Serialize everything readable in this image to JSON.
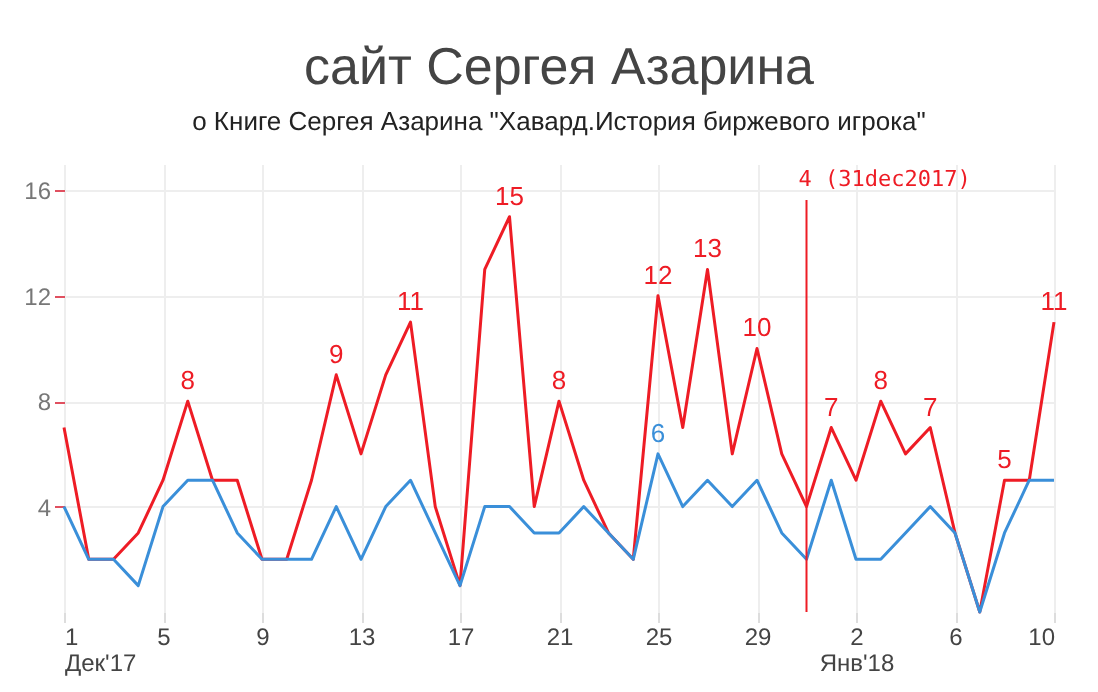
{
  "chart_data": {
    "type": "line",
    "title": "сайт Сергея Азарина",
    "subtitle": "о Книге Сергея Азарина \"Хавард.История биржевого игрока\"",
    "x": [
      "2017-12-01",
      "2017-12-02",
      "2017-12-03",
      "2017-12-04",
      "2017-12-05",
      "2017-12-06",
      "2017-12-07",
      "2017-12-08",
      "2017-12-09",
      "2017-12-10",
      "2017-12-11",
      "2017-12-12",
      "2017-12-13",
      "2017-12-14",
      "2017-12-15",
      "2017-12-16",
      "2017-12-17",
      "2017-12-18",
      "2017-12-19",
      "2017-12-20",
      "2017-12-21",
      "2017-12-22",
      "2017-12-23",
      "2017-12-24",
      "2017-12-25",
      "2017-12-26",
      "2017-12-27",
      "2017-12-28",
      "2017-12-29",
      "2017-12-30",
      "2017-12-31",
      "2018-01-01",
      "2018-01-02",
      "2018-01-03",
      "2018-01-04",
      "2018-01-05",
      "2018-01-06",
      "2018-01-07",
      "2018-01-08",
      "2018-01-09",
      "2018-01-10"
    ],
    "series": [
      {
        "color": "#ee1c25",
        "values": [
          7,
          2,
          2,
          3,
          5,
          8,
          5,
          5,
          2,
          2,
          5,
          9,
          6,
          9,
          11,
          4,
          1,
          13,
          15,
          4,
          8,
          5,
          3,
          2,
          12,
          7,
          13,
          6,
          10,
          6,
          4,
          7,
          5,
          8,
          6,
          7,
          3,
          0,
          5,
          5,
          11
        ],
        "value_labels": [
          null,
          null,
          null,
          null,
          null,
          "8",
          null,
          null,
          null,
          null,
          null,
          "9",
          null,
          null,
          "11",
          null,
          null,
          null,
          "15",
          null,
          "8",
          null,
          null,
          null,
          "12",
          null,
          "13",
          null,
          "10",
          null,
          null,
          "7",
          null,
          "8",
          null,
          "7",
          null,
          null,
          "5",
          null,
          "11"
        ]
      },
      {
        "color": "#3a8fd9",
        "values": [
          4,
          2,
          2,
          1,
          4,
          5,
          5,
          3,
          2,
          2,
          2,
          4,
          2,
          4,
          5,
          3,
          1,
          4,
          4,
          3,
          3,
          4,
          3,
          2,
          6,
          4,
          5,
          4,
          5,
          3,
          2,
          5,
          2,
          2,
          3,
          4,
          3,
          0,
          3,
          5,
          5
        ],
        "value_labels": [
          null,
          null,
          null,
          null,
          null,
          null,
          null,
          null,
          null,
          null,
          null,
          null,
          null,
          null,
          null,
          null,
          null,
          null,
          null,
          null,
          null,
          null,
          null,
          null,
          "6",
          null,
          null,
          null,
          null,
          null,
          null,
          null,
          null,
          null,
          null,
          null,
          null,
          null,
          null,
          null,
          null
        ]
      }
    ],
    "xlim": [
      "2017-12-01",
      "2018-01-10"
    ],
    "xticks": [
      {
        "value": "2017-12-01",
        "label": "1\nДек'17"
      },
      {
        "value": "2017-12-05",
        "label": "5"
      },
      {
        "value": "2017-12-09",
        "label": "9"
      },
      {
        "value": "2017-12-13",
        "label": "13"
      },
      {
        "value": "2017-12-17",
        "label": "17"
      },
      {
        "value": "2017-12-21",
        "label": "21"
      },
      {
        "value": "2017-12-25",
        "label": "25"
      },
      {
        "value": "2017-12-29",
        "label": "29"
      },
      {
        "value": "2018-01-02",
        "label": "2\nЯнв'18"
      },
      {
        "value": "2018-01-06",
        "label": "6"
      },
      {
        "value": "2018-01-10",
        "label": "10"
      }
    ],
    "ylim": [
      0,
      17
    ],
    "yticks": [
      4,
      8,
      12,
      16
    ],
    "ref_lines": [
      {
        "axis": "x",
        "value": "2017-12-31",
        "label": "4 (31dec2017)",
        "color": "#ee1c25"
      }
    ],
    "grid": true
  }
}
